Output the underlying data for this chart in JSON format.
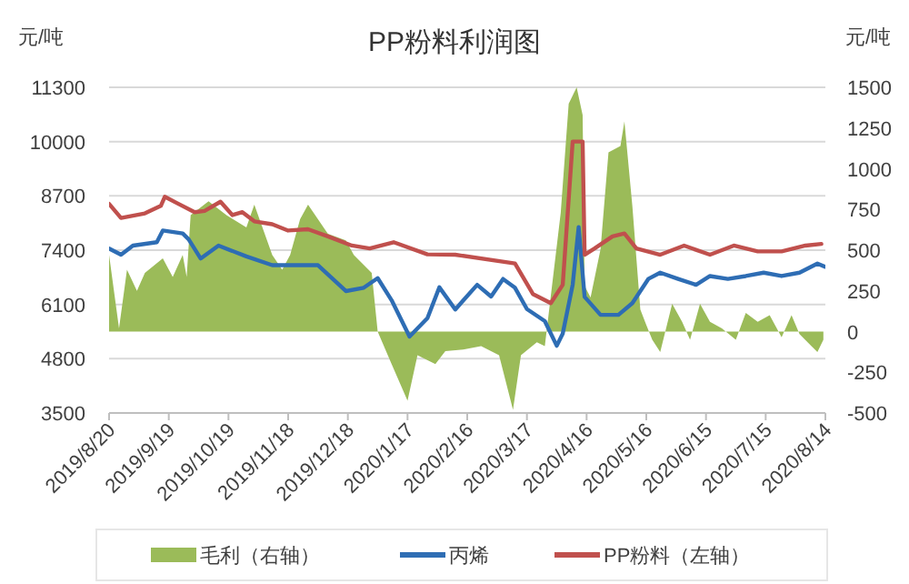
{
  "chart_data": {
    "type": "line",
    "title": "PP粉料利润图",
    "ylabel": "元/吨",
    "y2label": "元/吨",
    "xlim": [
      "2019-08-20",
      "2020-08-14"
    ],
    "xticks": [
      {
        "value": "2019-08-20",
        "label": "2019/8/20"
      },
      {
        "value": "2019-09-19",
        "label": "2019/9/19"
      },
      {
        "value": "2019-10-19",
        "label": "2019/10/19"
      },
      {
        "value": "2019-11-18",
        "label": "2019/11/18"
      },
      {
        "value": "2019-12-18",
        "label": "2019/12/18"
      },
      {
        "value": "2020-01-17",
        "label": "2020/1/17"
      },
      {
        "value": "2020-02-16",
        "label": "2020/2/16"
      },
      {
        "value": "2020-03-17",
        "label": "2020/3/17"
      },
      {
        "value": "2020-04-16",
        "label": "2020/4/16"
      },
      {
        "value": "2020-05-16",
        "label": "2020/5/16"
      },
      {
        "value": "2020-06-15",
        "label": "2020/6/15"
      },
      {
        "value": "2020-07-15",
        "label": "2020/7/15"
      },
      {
        "value": "2020-08-14",
        "label": "2020/8/14"
      }
    ],
    "ylim": [
      3500,
      11300
    ],
    "yticks": [
      3500,
      4800,
      6100,
      7400,
      8700,
      10000,
      11300
    ],
    "y2lim": [
      -500,
      1500
    ],
    "y2ticks": [
      -500,
      -250,
      0,
      250,
      500,
      750,
      1000,
      1250,
      1500
    ],
    "grid": "y",
    "legend": "bottom",
    "series": [
      {
        "name": "毛利（右轴）",
        "type": "area",
        "axis": "y2",
        "color": "#9bbb59",
        "x": [
          "2019-08-20",
          "2019-08-25",
          "2019-08-29",
          "2019-09-03",
          "2019-09-07",
          "2019-09-16",
          "2019-09-21",
          "2019-09-26",
          "2019-09-28",
          "2019-09-30",
          "2019-10-09",
          "2019-10-18",
          "2019-10-28",
          "2019-11-01",
          "2019-11-10",
          "2019-11-15",
          "2019-11-19",
          "2019-11-24",
          "2019-11-28",
          "2019-12-08",
          "2019-12-17",
          "2019-12-21",
          "2019-12-30",
          "2020-01-02",
          "2020-01-09",
          "2020-01-17",
          "2020-01-22",
          "2020-01-31",
          "2020-02-05",
          "2020-02-14",
          "2020-02-23",
          "2020-03-03",
          "2020-03-10",
          "2020-03-14",
          "2020-03-22",
          "2020-03-26",
          "2020-04-03",
          "2020-04-07",
          "2020-04-11",
          "2020-04-14",
          "2020-04-15",
          "2020-04-18",
          "2020-04-23",
          "2020-04-27",
          "2020-05-03",
          "2020-05-05",
          "2020-05-09",
          "2020-05-13",
          "2020-05-16",
          "2020-05-19",
          "2020-05-23",
          "2020-05-29",
          "2020-06-03",
          "2020-06-07",
          "2020-06-12",
          "2020-06-17",
          "2020-06-23",
          "2020-06-30",
          "2020-07-05",
          "2020-07-11",
          "2020-07-17",
          "2020-07-23",
          "2020-07-28",
          "2020-08-01",
          "2020-08-07",
          "2020-08-10",
          "2020-08-13"
        ],
        "values": [
          470,
          20,
          380,
          250,
          360,
          450,
          335,
          470,
          335,
          715,
          800,
          715,
          640,
          780,
          470,
          380,
          470,
          690,
          780,
          600,
          560,
          470,
          360,
          0,
          -200,
          -425,
          -145,
          -200,
          -120,
          -110,
          -90,
          -145,
          -480,
          -145,
          -65,
          -90,
          730,
          1400,
          1500,
          1330,
          280,
          210,
          505,
          1100,
          1140,
          1290,
          770,
          135,
          40,
          -50,
          -125,
          170,
          60,
          -50,
          170,
          60,
          20,
          -50,
          115,
          60,
          100,
          -35,
          100,
          -15,
          -90,
          -125,
          -50
        ]
      },
      {
        "name": "丙烯",
        "type": "line",
        "axis": "y",
        "color": "#2e6db4",
        "x": [
          "2019-08-20",
          "2019-08-26",
          "2019-09-01",
          "2019-09-13",
          "2019-09-16",
          "2019-09-26",
          "2019-09-29",
          "2019-10-05",
          "2019-10-14",
          "2019-10-28",
          "2019-11-10",
          "2019-12-03",
          "2019-12-17",
          "2019-12-26",
          "2020-01-02",
          "2020-01-09",
          "2020-01-18",
          "2020-01-27",
          "2020-02-02",
          "2020-02-10",
          "2020-02-21",
          "2020-02-28",
          "2020-03-05",
          "2020-03-11",
          "2020-03-17",
          "2020-03-26",
          "2020-04-01",
          "2020-04-04",
          "2020-04-09",
          "2020-04-12",
          "2020-04-15",
          "2020-04-23",
          "2020-05-02",
          "2020-05-09",
          "2020-05-17",
          "2020-05-23",
          "2020-06-01",
          "2020-06-10",
          "2020-06-17",
          "2020-06-26",
          "2020-07-05",
          "2020-07-14",
          "2020-07-23",
          "2020-08-01",
          "2020-08-10",
          "2020-08-14"
        ],
        "values": [
          7440,
          7290,
          7510,
          7590,
          7870,
          7800,
          7660,
          7200,
          7510,
          7250,
          7040,
          7040,
          6420,
          6500,
          6730,
          6200,
          5330,
          5770,
          6510,
          5980,
          6570,
          6290,
          6710,
          6500,
          5990,
          5700,
          5110,
          5400,
          6570,
          7950,
          6280,
          5850,
          5850,
          6130,
          6710,
          6860,
          6710,
          6570,
          6780,
          6710,
          6780,
          6860,
          6780,
          6860,
          7080,
          7000
        ]
      },
      {
        "name": "PP粉料（左轴）",
        "type": "line",
        "axis": "y",
        "color": "#c0504d",
        "x": [
          "2019-08-20",
          "2019-08-26",
          "2019-09-07",
          "2019-09-15",
          "2019-09-17",
          "2019-09-23",
          "2019-10-02",
          "2019-10-07",
          "2019-10-15",
          "2019-10-21",
          "2019-10-26",
          "2019-11-01",
          "2019-11-10",
          "2019-11-18",
          "2019-11-28",
          "2019-12-08",
          "2019-12-20",
          "2019-12-29",
          "2020-01-10",
          "2020-01-27",
          "2020-02-10",
          "2020-03-11",
          "2020-03-20",
          "2020-03-29",
          "2020-04-04",
          "2020-04-09",
          "2020-04-14",
          "2020-04-15",
          "2020-04-20",
          "2020-04-29",
          "2020-05-05",
          "2020-05-11",
          "2020-05-23",
          "2020-06-04",
          "2020-06-17",
          "2020-06-29",
          "2020-07-11",
          "2020-07-23",
          "2020-08-04",
          "2020-08-12"
        ],
        "values": [
          8510,
          8170,
          8280,
          8460,
          8680,
          8530,
          8310,
          8340,
          8560,
          8240,
          8310,
          8090,
          8020,
          7870,
          7900,
          7730,
          7510,
          7440,
          7590,
          7300,
          7290,
          7080,
          6350,
          6130,
          6570,
          10000,
          10000,
          7290,
          7440,
          7730,
          7800,
          7440,
          7290,
          7510,
          7290,
          7510,
          7370,
          7370,
          7510,
          7550
        ]
      }
    ]
  }
}
